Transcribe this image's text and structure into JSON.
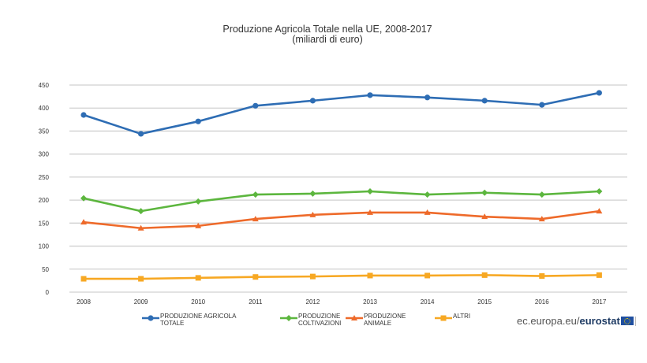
{
  "chart_data": {
    "type": "line",
    "title": "Produzione Agricola Totale nella UE, 2008-2017",
    "subtitle": "(miliardi di euro)",
    "xlabel": "",
    "ylabel": "",
    "ylim": [
      0,
      450
    ],
    "yticks": [
      "0",
      "50",
      "100",
      "150",
      "200",
      "250",
      "300",
      "350",
      "400",
      "450"
    ],
    "grid": true,
    "legend_position": "bottom",
    "categories": [
      "2008",
      "2009",
      "2010",
      "2011",
      "2012",
      "2013",
      "2014",
      "2015",
      "2016",
      "2017"
    ],
    "series": [
      {
        "name": "PRODUZIONE AGRICOLA TOTALE",
        "label_lines": [
          "PRODUZIONE AGRICOLA",
          "TOTALE"
        ],
        "color": "#2e6db4",
        "marker": "circle",
        "values": [
          385,
          344,
          371,
          405,
          416,
          428,
          423,
          416,
          407,
          433
        ]
      },
      {
        "name": "PRODUZIONE COLTIVAZIONI",
        "label_lines": [
          "PRODUZIONE",
          "COLTIVAZIONI"
        ],
        "color": "#5cb63e",
        "marker": "diamond",
        "values": [
          204,
          176,
          197,
          212,
          214,
          219,
          212,
          216,
          212,
          219
        ]
      },
      {
        "name": "PRODUZIONE ANIMALE",
        "label_lines": [
          "PRODUZIONE",
          "ANIMALE"
        ],
        "color": "#ee6a2a",
        "marker": "triangle",
        "values": [
          152,
          139,
          144,
          159,
          168,
          173,
          173,
          164,
          159,
          176
        ]
      },
      {
        "name": "ALTRI",
        "label_lines": [
          "ALTRI"
        ],
        "color": "#f7a823",
        "marker": "square",
        "values": [
          29,
          29,
          31,
          33,
          34,
          36,
          36,
          37,
          35,
          37
        ]
      }
    ]
  },
  "brand": {
    "prefix": "ec.europa.eu/",
    "name": "eurostat"
  }
}
